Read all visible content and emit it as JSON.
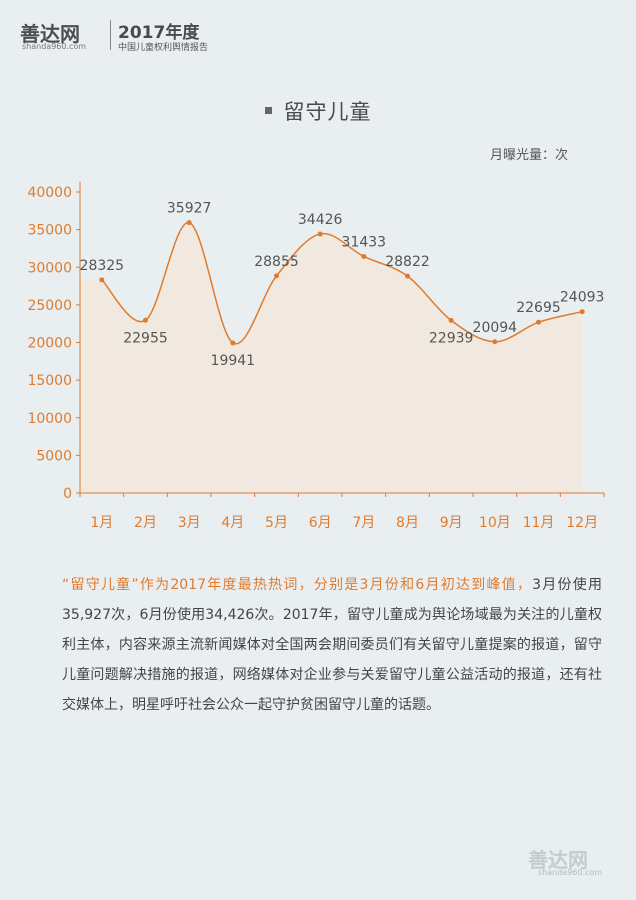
{
  "header": {
    "logo": "善达网",
    "logo_sub": "shanda960.com",
    "year": "2017年度",
    "report_name": "中国儿童权利舆情报告"
  },
  "chart_title": "留守儿童",
  "unit_label": "月曝光量：次",
  "chart_data": {
    "type": "area",
    "title": "留守儿童",
    "ylabel": "月曝光量：次",
    "categories": [
      "1月",
      "2月",
      "3月",
      "4月",
      "5月",
      "6月",
      "7月",
      "8月",
      "9月",
      "10月",
      "11月",
      "12月"
    ],
    "values": [
      28325,
      22955,
      35927,
      19941,
      28855,
      34426,
      31433,
      28822,
      22939,
      20094,
      22695,
      24093
    ],
    "data_labels": [
      "28325",
      "22955",
      "35927",
      "19941",
      "28855",
      "34426",
      "31433",
      "28822",
      "22939",
      "20094",
      "22695",
      "24093"
    ],
    "yticks": [
      "0",
      "5000",
      "10000",
      "15000",
      "20000",
      "25000",
      "30000",
      "35000",
      "40000"
    ],
    "ylim": [
      0,
      40000
    ],
    "line_color": "#e07b2e",
    "fill_color": "#f1e9df",
    "axis_color": "#e07b2e"
  },
  "body": {
    "highlight": "“留守儿童”作为2017年度最热热词，分别是3月份和6月初达到峰值，",
    "text": "3月份使用35,927次，6月份使用34,426次。2017年，留守儿童成为舆论场域最为关注的儿童权利主体，内容来源主流新闻媒体对全国两会期间委员们有关留守儿童提案的报道，留守儿童问题解决措施的报道，网络媒体对企业参与关爱留守儿童公益活动的报道，还有社交媒体上，明星呼吁社会公众一起守护贫困留守儿童的话题。"
  },
  "watermark": {
    "logo": "善达网",
    "url": "shanda960.com"
  }
}
